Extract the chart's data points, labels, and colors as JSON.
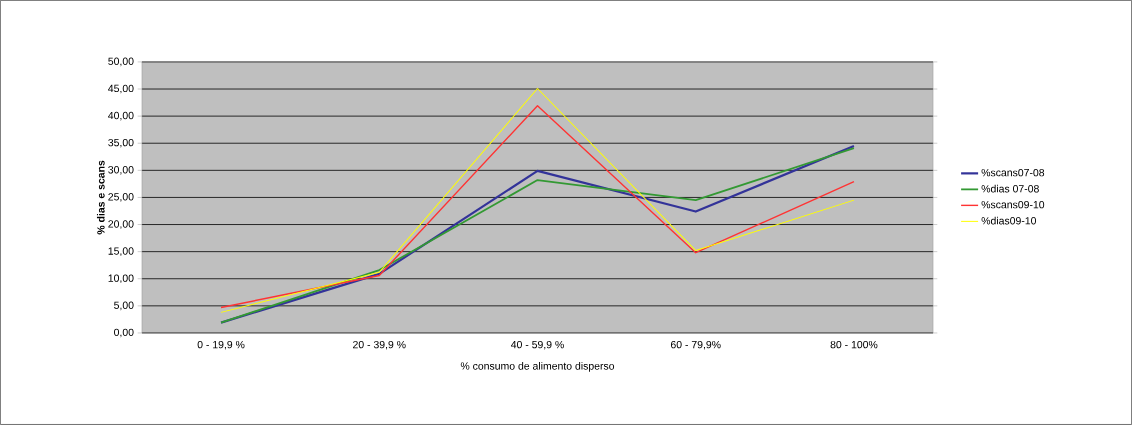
{
  "chart_data": {
    "type": "line",
    "xlabel": "% consumo de alimento disperso",
    "ylabel": "% dias e scans",
    "categories": [
      "0 - 19,9 %",
      "20 - 39,9 %",
      "40 - 59,9 %",
      "60 - 79,9%",
      "80 - 100%"
    ],
    "series": [
      {
        "name": "%scans07-08",
        "color": "#333399",
        "values": [
          1.9,
          10.9,
          29.9,
          22.4,
          34.5
        ]
      },
      {
        "name": "%dias 07-08",
        "color": "#339933",
        "values": [
          1.9,
          11.6,
          28.2,
          24.5,
          34.1
        ]
      },
      {
        "name": "%scans09-10",
        "color": "#ff3333",
        "values": [
          4.7,
          10.6,
          41.9,
          14.8,
          27.9
        ]
      },
      {
        "name": "%dias09-10",
        "color": "#ffff00",
        "values": [
          3.8,
          11.2,
          45.1,
          15.2,
          24.5
        ]
      }
    ],
    "ylim": [
      0,
      50
    ],
    "yticks": [
      {
        "value": 0,
        "label": "0,00"
      },
      {
        "value": 5,
        "label": "5,00"
      },
      {
        "value": 10,
        "label": "10,00"
      },
      {
        "value": 15,
        "label": "15,00"
      },
      {
        "value": 20,
        "label": "20,00"
      },
      {
        "value": 25,
        "label": "25,00"
      },
      {
        "value": 30,
        "label": "30,00"
      },
      {
        "value": 35,
        "label": "35,00"
      },
      {
        "value": 40,
        "label": "40,00"
      },
      {
        "value": 45,
        "label": "45,00"
      },
      {
        "value": 50,
        "label": "50,00"
      }
    ],
    "grid": "y",
    "legend": "right",
    "marker": "none",
    "line_style": "solid"
  }
}
